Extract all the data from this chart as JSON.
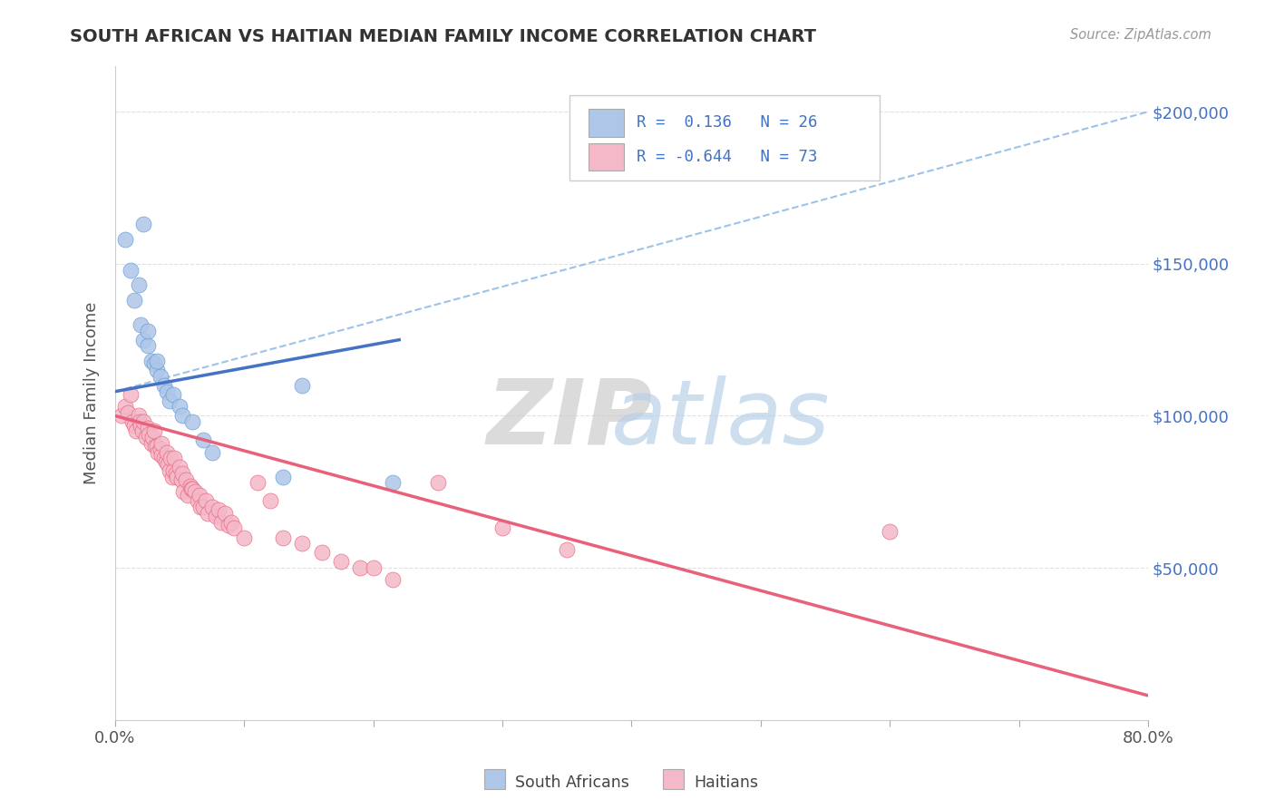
{
  "title": "SOUTH AFRICAN VS HAITIAN MEDIAN FAMILY INCOME CORRELATION CHART",
  "source": "Source: ZipAtlas.com",
  "ylabel": "Median Family Income",
  "yticks": [
    50000,
    100000,
    150000,
    200000
  ],
  "ytick_labels": [
    "$50,000",
    "$100,000",
    "$150,000",
    "$200,000"
  ],
  "legend_entries": [
    {
      "label": "South Africans",
      "R": " 0.136",
      "N": "26",
      "color": "#aec6e8",
      "edge": "#5b9bd5"
    },
    {
      "label": "Haitians",
      "R": "-0.644",
      "N": "73",
      "color": "#f4b8c8",
      "edge": "#e8607a"
    }
  ],
  "south_african_scatter": {
    "x": [
      0.008,
      0.022,
      0.012,
      0.018,
      0.015,
      0.02,
      0.022,
      0.025,
      0.025,
      0.028,
      0.03,
      0.032,
      0.032,
      0.035,
      0.038,
      0.04,
      0.042,
      0.045,
      0.05,
      0.052,
      0.06,
      0.068,
      0.075,
      0.13,
      0.145,
      0.215
    ],
    "y": [
      158000,
      163000,
      148000,
      143000,
      138000,
      130000,
      125000,
      123000,
      128000,
      118000,
      117000,
      115000,
      118000,
      113000,
      110000,
      108000,
      105000,
      107000,
      103000,
      100000,
      98000,
      92000,
      88000,
      80000,
      110000,
      78000
    ]
  },
  "haitian_scatter": {
    "x": [
      0.005,
      0.008,
      0.01,
      0.012,
      0.013,
      0.015,
      0.016,
      0.018,
      0.019,
      0.02,
      0.021,
      0.022,
      0.024,
      0.025,
      0.026,
      0.028,
      0.029,
      0.03,
      0.031,
      0.032,
      0.033,
      0.035,
      0.036,
      0.036,
      0.038,
      0.039,
      0.04,
      0.041,
      0.042,
      0.043,
      0.044,
      0.045,
      0.046,
      0.047,
      0.048,
      0.05,
      0.051,
      0.052,
      0.053,
      0.055,
      0.056,
      0.058,
      0.059,
      0.06,
      0.062,
      0.064,
      0.065,
      0.066,
      0.068,
      0.07,
      0.072,
      0.075,
      0.078,
      0.08,
      0.082,
      0.085,
      0.088,
      0.09,
      0.092,
      0.1,
      0.11,
      0.12,
      0.13,
      0.145,
      0.16,
      0.175,
      0.19,
      0.2,
      0.215,
      0.25,
      0.3,
      0.35,
      0.6
    ],
    "y": [
      100000,
      103000,
      101000,
      107000,
      98000,
      97000,
      95000,
      100000,
      98000,
      97000,
      95000,
      98000,
      93000,
      96000,
      94000,
      91000,
      93000,
      95000,
      90000,
      90000,
      88000,
      89000,
      87000,
      91000,
      86000,
      85000,
      88000,
      84000,
      82000,
      86000,
      80000,
      82000,
      86000,
      81000,
      80000,
      83000,
      79000,
      81000,
      75000,
      79000,
      74000,
      77000,
      76000,
      76000,
      75000,
      72000,
      74000,
      70000,
      70000,
      72000,
      68000,
      70000,
      67000,
      69000,
      65000,
      68000,
      64000,
      65000,
      63000,
      60000,
      78000,
      72000,
      60000,
      58000,
      55000,
      52000,
      50000,
      50000,
      46000,
      78000,
      63000,
      56000,
      62000
    ]
  },
  "sa_solid_line": {
    "x0": 0.0,
    "x1": 0.22,
    "y0": 108000,
    "y1": 125000
  },
  "sa_dashed_line": {
    "x0": 0.0,
    "x1": 0.8,
    "y0": 108000,
    "y1": 200000
  },
  "haitian_line": {
    "x0": 0.0,
    "x1": 0.8,
    "y0": 100000,
    "y1": 8000
  },
  "sa_line_color": "#4472c4",
  "sa_dash_color": "#9dc3e6",
  "haitian_line_color": "#e8607a",
  "sa_scatter_color": "#aec6e8",
  "sa_edge_color": "#5b9bd5",
  "haitian_scatter_color": "#f4b8c8",
  "haitian_edge_color": "#e8607a",
  "watermark_zip": "ZIP",
  "watermark_atlas": "atlas",
  "bg_color": "#ffffff",
  "grid_color": "#e0e0e0",
  "xlim": [
    0.0,
    0.8
  ],
  "ylim": [
    0,
    215000
  ],
  "xtick_count": 9,
  "title_color": "#333333",
  "ylabel_color": "#555555",
  "ytick_color": "#4472c4",
  "source_color": "#999999"
}
